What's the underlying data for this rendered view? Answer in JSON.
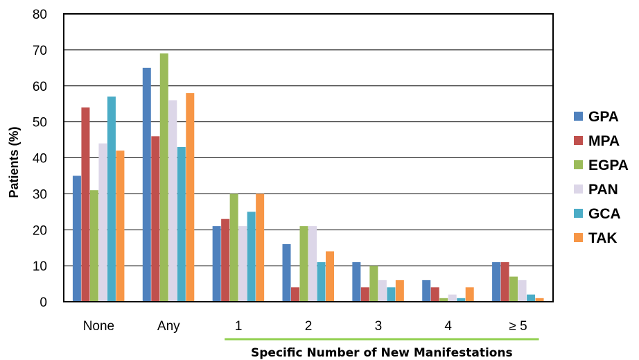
{
  "chart_data": {
    "type": "bar",
    "ylabel": "Patients (%)",
    "xlabel": "",
    "ylim": [
      0,
      80
    ],
    "yticks": [
      0,
      10,
      20,
      30,
      40,
      50,
      60,
      70,
      80
    ],
    "grid": "horizontal",
    "legend_position": "right",
    "categories": [
      "None",
      "Any",
      "1",
      "2",
      "3",
      "4",
      "≥ 5"
    ],
    "group_label": "Specific Number of New Manifestations",
    "group_label_categories": [
      "1",
      "2",
      "3",
      "4",
      "≥ 5"
    ],
    "group_underline_color": "#92d050",
    "series": [
      {
        "name": "GPA",
        "color": "#4f81bd",
        "values": [
          35,
          65,
          21,
          16,
          11,
          6,
          11
        ]
      },
      {
        "name": "MPA",
        "color": "#c0504d",
        "values": [
          54,
          46,
          23,
          4,
          4,
          4,
          11
        ]
      },
      {
        "name": "EGPA",
        "color": "#9bbb59",
        "values": [
          31,
          69,
          30,
          21,
          10,
          1,
          7
        ]
      },
      {
        "name": "PAN",
        "color": "#dcd6e8",
        "values": [
          44,
          56,
          21,
          21,
          6,
          2,
          6
        ]
      },
      {
        "name": "GCA",
        "color": "#4bacc6",
        "values": [
          57,
          43,
          25,
          11,
          4,
          1,
          2
        ]
      },
      {
        "name": "TAK",
        "color": "#f79646",
        "values": [
          42,
          58,
          30,
          14,
          6,
          4,
          1
        ]
      }
    ]
  }
}
